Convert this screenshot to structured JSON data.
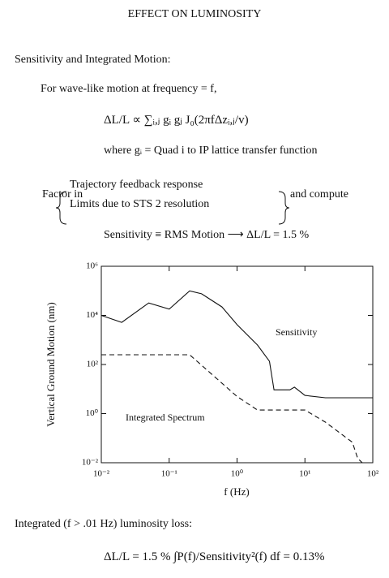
{
  "text": {
    "title": "EFFECT ON LUMINOSITY",
    "heading": "Sensitivity and Integrated Motion:",
    "wave": "For wave-like motion at frequency = f,",
    "eq1": "ΔL/L ∝ ∑ᵢ,ⱼ gᵢ gⱼ J₀(2πfΔzᵢ,ⱼ/v)",
    "where": "where gᵢ = Quad i to IP lattice transfer function",
    "factor_in": "Factor in",
    "factor_items": [
      "Trajectory feedback response",
      "Limits due to STS 2 resolution"
    ],
    "and_compute": "and compute",
    "sensitivity": "Sensitivity ≡ RMS Motion ⟶ ΔL/L = 1.5 %",
    "integrated": "Integrated (f > .01 Hz) luminosity loss:",
    "eq2": "ΔL/L = 1.5 % ∫P(f)/Sensitivity²(f) df = 0.13%"
  },
  "chart_data": {
    "type": "line",
    "xlabel": "f (Hz)",
    "ylabel": "Vertical Ground Motion (nm)",
    "log_x": true,
    "log_y": true,
    "xlim": [
      0.01,
      100
    ],
    "ylim": [
      0.01,
      1000000
    ],
    "xticks": [
      {
        "value": 0.01,
        "label": "10⁻²"
      },
      {
        "value": 0.1,
        "label": "10⁻¹"
      },
      {
        "value": 1,
        "label": "10⁰"
      },
      {
        "value": 10,
        "label": "10¹"
      },
      {
        "value": 100,
        "label": "10²"
      }
    ],
    "yticks": [
      {
        "value": 0.01,
        "label": "10⁻²"
      },
      {
        "value": 1,
        "label": "10⁰"
      },
      {
        "value": 100,
        "label": "10²"
      },
      {
        "value": 10000,
        "label": "10⁴"
      },
      {
        "value": 1000000,
        "label": "10⁶"
      }
    ],
    "series": [
      {
        "name": "Sensitivity",
        "color": "#111111",
        "dash": false,
        "x": [
          0.01,
          0.02,
          0.05,
          0.1,
          0.2,
          0.3,
          0.6,
          1,
          2,
          3,
          3.5,
          6,
          7,
          10,
          20,
          100
        ],
        "values": [
          10000,
          5200,
          32000,
          18000,
          100000,
          76000,
          22000,
          4200,
          620,
          135,
          9.3,
          9.3,
          12,
          5.5,
          4.4,
          4.4
        ]
      },
      {
        "name": "Integrated Spectrum",
        "color": "#111111",
        "dash": true,
        "x": [
          0.01,
          0.2,
          1,
          2,
          10,
          20,
          50,
          60,
          70
        ],
        "values": [
          250,
          250,
          5,
          1.4,
          1.4,
          0.45,
          0.068,
          0.015,
          0.01
        ]
      }
    ]
  }
}
